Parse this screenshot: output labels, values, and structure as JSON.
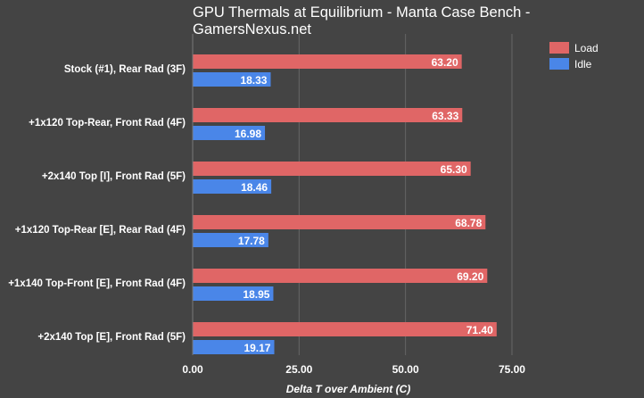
{
  "chart_data": {
    "type": "bar",
    "orientation": "horizontal",
    "title_lines": [
      "GPU Thermals at Equilibrium - Manta Case Bench -",
      "GamersNexus.net"
    ],
    "xlabel": "Delta T over Ambient (C)",
    "ylabel": "",
    "xlim": [
      0,
      75
    ],
    "x_ticks": [
      "0.00",
      "25.00",
      "50.00",
      "75.00"
    ],
    "grid": true,
    "legend_position": "top-right",
    "categories": [
      "Stock (#1), Rear Rad (3F)",
      "+1x120 Top-Rear, Front Rad (4F)",
      "+2x140 Top [I], Front Rad (5F)",
      "+1x120 Top-Rear [E], Rear Rad (4F)",
      "+1x140 Top-Front [E], Front Rad (4F)",
      "+2x140 Top [E], Front Rad (5F)"
    ],
    "series": [
      {
        "name": "Load",
        "color": "#e06666",
        "values": [
          63.2,
          63.33,
          65.3,
          68.78,
          69.2,
          71.4
        ],
        "labels": [
          "63.20",
          "63.33",
          "65.30",
          "68.78",
          "69.20",
          "71.40"
        ]
      },
      {
        "name": "Idle",
        "color": "#4a86e8",
        "values": [
          18.33,
          16.98,
          18.46,
          17.78,
          18.95,
          19.17
        ],
        "labels": [
          "18.33",
          "16.98",
          "18.46",
          "17.78",
          "18.95",
          "19.17"
        ]
      }
    ]
  },
  "colors": {
    "background": "#444444",
    "gridline": "#666666",
    "text": "#ffffff"
  }
}
